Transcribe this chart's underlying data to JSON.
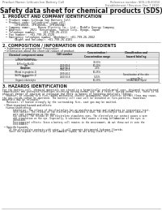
{
  "title": "Safety data sheet for chemical products (SDS)",
  "header_left": "Product Name: Lithium Ion Battery Cell",
  "header_right_1": "Reference number: SDS-LIB-00010",
  "header_right_2": "Establishment / Revision: Dec.7.2010",
  "section1_title": "1. PRODUCT AND COMPANY IDENTIFICATION",
  "section1_lines": [
    "  • Product name: Lithium Ion Battery Cell",
    "  • Product code: Cylindrical-type cell",
    "       (IFR18650, IFR18650L, IFR18650A)",
    "  • Company name:     Benzo Electric Co., Ltd., Middle Energy Company",
    "  • Address:     2021  Kenintukan, Sunsin City, Hyogo, Japan",
    "  • Telephone number:    +81-799-26-4111",
    "  • Fax number:  +81-799-26-4120",
    "  • Emergency telephone number (Weekday): +81-799-26-2662",
    "       (Night and holiday): +81-799-26-4101"
  ],
  "section2_title": "2. COMPOSITION / INFORMATION ON INGREDIENTS",
  "section2_intro": "  • Substance or preparation: Preparation",
  "section2_sub": "  • Information about the chemical nature of product:",
  "table_col_names": [
    "Chemical component name",
    "CAS number",
    "Concentration /\nConcentration range",
    "Classification and\nhazard labeling"
  ],
  "table_sub_header": [
    "Several names",
    "",
    "30-60%",
    ""
  ],
  "table_rows": [
    [
      "Lithium cobalt oxide\n(LiMnxCoyNizO2)",
      "-",
      "30-60%",
      "-"
    ],
    [
      "Iron",
      "7439-89-6",
      "10-20%",
      "-"
    ],
    [
      "Aluminum",
      "7429-90-5",
      "2-6%",
      "-"
    ],
    [
      "Graphite\n(Metal in graphite-1)\n(Al-Mo in graphite-2)",
      "7782-42-5\n7439-44-2",
      "10-25%",
      "-"
    ],
    [
      "Copper",
      "7440-50-8",
      "5-15%",
      "Sensitization of the skin\ngroup No.2"
    ],
    [
      "Organic electrolyte",
      "-",
      "10-20%",
      "Inflammable liquid"
    ]
  ],
  "section3_title": "3. HAZARDS IDENTIFICATION",
  "section3_para1": [
    "For the battery cell, chemical materials are stored in a hermetically sealed metal case, designed to withstand",
    "temperatures and pressures/vibrations occurring during normal use. As a result, during normal use, there is no",
    "physical danger of ignition or explosion and there is danger of hazardous materials leakage.",
    "   However, if exposed to a fire, added mechanical shocks, decomposed, when electric current flows may cause,",
    "the gas inside cannot be operated. The battery cell case will be breached at fire-patterns, hazardous",
    "materials may be released.",
    "   Moreover, if heated strongly by the surrounding fire, soot gas may be emitted."
  ],
  "section3_bullet1": "  • Most important hazard and effects:",
  "section3_sub1": "     Human health effects:",
  "section3_sub1_lines": [
    "        Inhalation: The release of the electrolyte has an anesthesia action and stimulates in respiratory tract.",
    "        Skin contact: The release of the electrolyte stimulates a skin. The electrolyte skin contact causes a",
    "        sore and stimulation on the skin.",
    "        Eye contact: The release of the electrolyte stimulates eyes. The electrolyte eye contact causes a sore",
    "        and stimulation on the eye. Especially, a substance that causes a strong inflammation of the eyes is",
    "        contained.",
    "        Environmental effects: Since a battery cell remains in the environment, do not throw out it into the",
    "        environment."
  ],
  "section3_bullet2": "  • Specific hazards:",
  "section3_sub2_lines": [
    "     If the electrolyte contacts with water, it will generate detrimental hydrogen fluoride.",
    "     Since the organic electrolyte is inflammable liquid, do not bring close to fire."
  ],
  "bg_color": "#ffffff",
  "text_color": "#1a1a1a",
  "gray_text": "#666666",
  "border_color": "#999999",
  "table_header_bg": "#e0e0e0",
  "table_row_bg": "#f8f8f8"
}
